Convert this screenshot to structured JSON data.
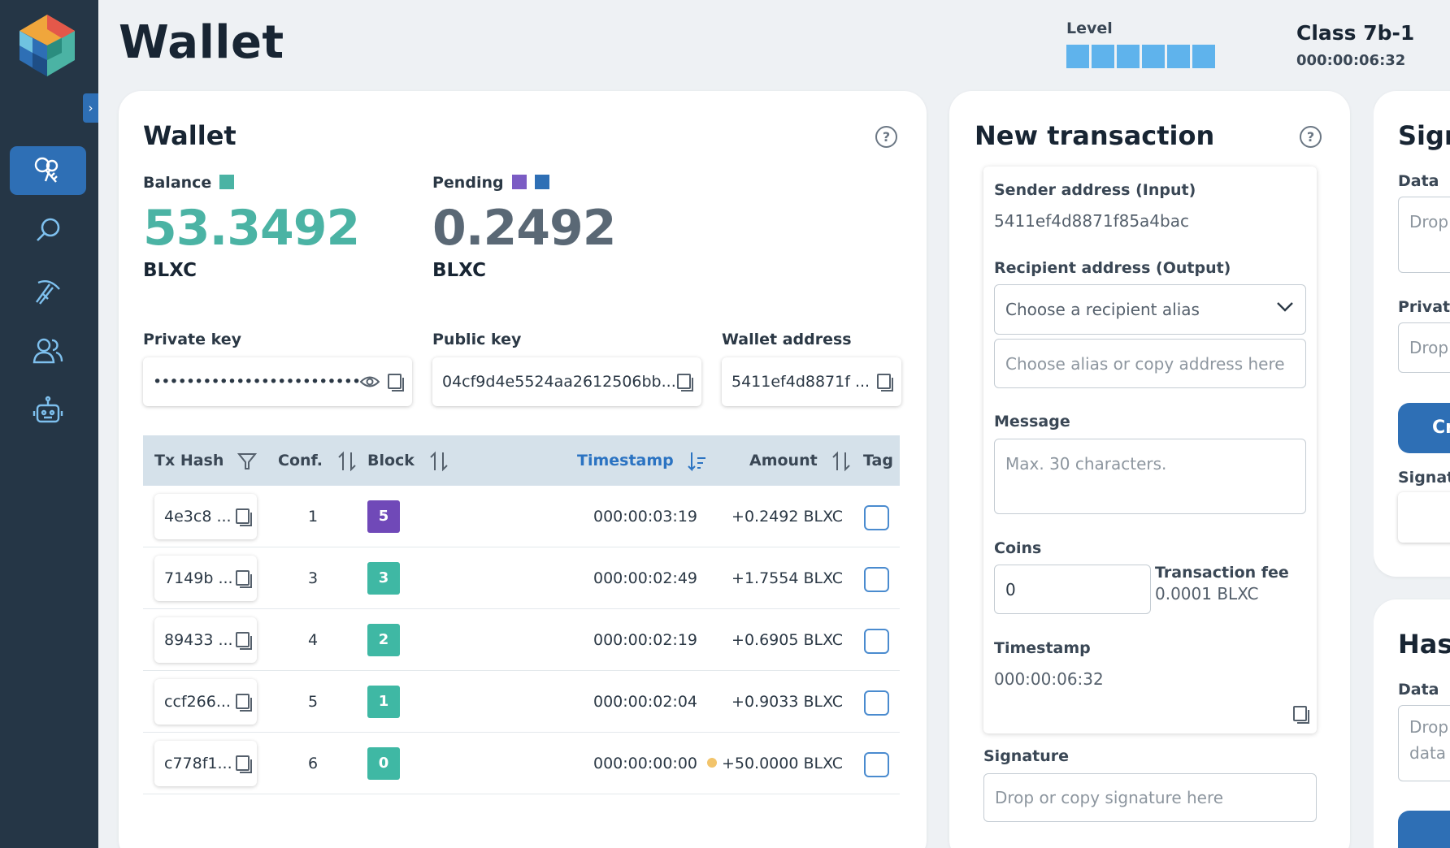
{
  "app": {
    "title": "Wallet"
  },
  "header": {
    "level_label": "Level",
    "level_segments": 6,
    "class_title": "Class 7b-1",
    "class_time": "000:00:06:32"
  },
  "colors": {
    "sidebar": "#253646",
    "accent": "#2e6fb5",
    "balance": "#4bb3a4",
    "pending": "#5a6875",
    "pending_square_1": "#7b5cc4",
    "pending_square_2": "#2e6fb5",
    "badge_purple": "#7049b8",
    "badge_teal": "#3fb8a4"
  },
  "sidebar": {
    "toggle_glyph": "›",
    "items": [
      {
        "name": "wallet-keys-icon",
        "active": true
      },
      {
        "name": "search-icon",
        "active": false
      },
      {
        "name": "mining-pickaxe-icon",
        "active": false
      },
      {
        "name": "users-icon",
        "active": false
      },
      {
        "name": "bot-icon",
        "active": false
      }
    ]
  },
  "wallet": {
    "title": "Wallet",
    "help_glyph": "?",
    "balance_label": "Balance",
    "balance_value": "53.3492",
    "balance_unit": "BLXC",
    "pending_label": "Pending",
    "pending_value": "0.2492",
    "pending_unit": "BLXC",
    "private_key_label": "Private key",
    "private_key_value": "•••••••••••••••••••••••••••••• ...",
    "public_key_label": "Public key",
    "public_key_value": "04cf9d4e5524aa2612506bb...",
    "wallet_address_label": "Wallet address",
    "wallet_address_value": "5411ef4d8871f ..."
  },
  "table": {
    "headers": {
      "hash": "Tx Hash",
      "conf": "Conf.",
      "block": "Block",
      "timestamp": "Timestamp",
      "amount": "Amount",
      "tag": "Tag"
    },
    "rows": [
      {
        "hash": "4e3c8 ...",
        "conf": "1",
        "block": "5",
        "block_color": "#7049b8",
        "timestamp": "000:00:03:19",
        "amount": "+0.2492 BLXC",
        "pending_dot": false
      },
      {
        "hash": "7149b ...",
        "conf": "3",
        "block": "3",
        "block_color": "#3fb8a4",
        "timestamp": "000:00:02:49",
        "amount": "+1.7554 BLXC",
        "pending_dot": false
      },
      {
        "hash": "89433 ...",
        "conf": "4",
        "block": "2",
        "block_color": "#3fb8a4",
        "timestamp": "000:00:02:19",
        "amount": "+0.6905 BLXC",
        "pending_dot": false
      },
      {
        "hash": "ccf266...",
        "conf": "5",
        "block": "1",
        "block_color": "#3fb8a4",
        "timestamp": "000:00:02:04",
        "amount": "+0.9033 BLXC",
        "pending_dot": false
      },
      {
        "hash": "c778f1...",
        "conf": "6",
        "block": "0",
        "block_color": "#3fb8a4",
        "timestamp": "000:00:00:00",
        "amount": "+50.0000 BLXC",
        "pending_dot": true
      }
    ]
  },
  "new_tx": {
    "title": "New transaction",
    "help_glyph": "?",
    "sender_label": "Sender address (Input)",
    "sender_value": "5411ef4d8871f85a4bac",
    "recipient_label": "Recipient address (Output)",
    "recipient_select": "Choose a recipient alias",
    "recipient_placeholder": "Choose alias or copy address here",
    "message_label": "Message",
    "message_placeholder": "Max. 30 characters.",
    "coins_label": "Coins",
    "coins_value": "0",
    "fee_label": "Transaction fee",
    "fee_value": "0.0001 BLXC",
    "timestamp_label": "Timestamp",
    "timestamp_value": "000:00:06:32",
    "signature_label": "Signature",
    "signature_placeholder": "Drop or copy signature here"
  },
  "sign_card": {
    "title": "Sign",
    "data_label": "Data",
    "data_placeholder": "Drop",
    "private_label": "Private",
    "private_placeholder": "Drop",
    "button_label": "Cr",
    "signature_label": "Signatu"
  },
  "hash_card": {
    "title": "Hash",
    "data_label": "Data",
    "data_placeholder_1": "Drop",
    "data_placeholder_2": "data"
  }
}
